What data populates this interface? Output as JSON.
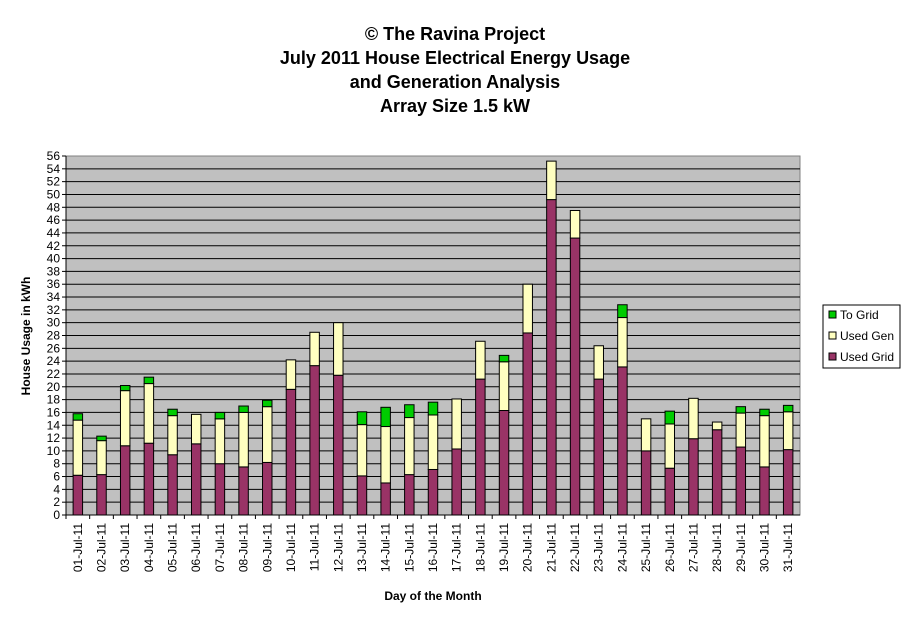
{
  "chart_data": {
    "type": "bar",
    "stacked": true,
    "title_lines": [
      "© The Ravina Project",
      "July 2011 House Electrical Energy Usage",
      "and Generation Analysis",
      "Array Size 1.5 kW"
    ],
    "xlabel": "Day of the Month",
    "ylabel": "House Usage in kWh",
    "ylim": [
      0,
      56
    ],
    "ytick_step": 2,
    "grid": true,
    "legend_position": "right",
    "categories": [
      "01-Jul-11",
      "02-Jul-11",
      "03-Jul-11",
      "04-Jul-11",
      "05-Jul-11",
      "06-Jul-11",
      "07-Jul-11",
      "08-Jul-11",
      "09-Jul-11",
      "10-Jul-11",
      "11-Jul-11",
      "12-Jul-11",
      "13-Jul-11",
      "14-Jul-11",
      "15-Jul-11",
      "16-Jul-11",
      "17-Jul-11",
      "18-Jul-11",
      "19-Jul-11",
      "20-Jul-11",
      "21-Jul-11",
      "22-Jul-11",
      "23-Jul-11",
      "24-Jul-11",
      "25-Jul-11",
      "26-Jul-11",
      "27-Jul-11",
      "28-Jul-11",
      "29-Jul-11",
      "30-Jul-11",
      "31-Jul-11"
    ],
    "series": [
      {
        "name": "Used Grid",
        "color": "#993366",
        "values": [
          6.2,
          6.3,
          10.8,
          11.2,
          9.4,
          11.1,
          8.0,
          7.5,
          8.2,
          19.6,
          23.3,
          21.8,
          6.1,
          5.0,
          6.3,
          7.1,
          10.3,
          21.2,
          16.3,
          28.4,
          49.2,
          43.2,
          21.2,
          23.1,
          10.0,
          7.3,
          11.9,
          13.3,
          10.6,
          7.5,
          10.2
        ]
      },
      {
        "name": "Used Gen",
        "color": "#FFFFC0",
        "values": [
          8.6,
          5.3,
          8.6,
          9.3,
          6.1,
          4.6,
          7.0,
          8.5,
          8.7,
          4.6,
          5.2,
          8.2,
          8.0,
          8.8,
          8.9,
          8.5,
          7.8,
          5.9,
          7.6,
          7.6,
          6.0,
          4.3,
          5.2,
          7.7,
          5.0,
          6.9,
          6.3,
          1.2,
          5.3,
          8.0,
          5.9
        ]
      },
      {
        "name": "To Grid",
        "color": "#00CC00",
        "values": [
          1.0,
          0.7,
          0.8,
          1.0,
          1.0,
          0.0,
          1.0,
          1.0,
          1.0,
          0.0,
          0.0,
          0.0,
          2.0,
          3.0,
          2.0,
          2.0,
          0.0,
          0.0,
          1.0,
          0.0,
          0.0,
          0.0,
          0.0,
          2.0,
          0.0,
          2.0,
          0.0,
          0.0,
          1.0,
          1.0,
          1.0
        ]
      }
    ],
    "legend_order": [
      "To Grid",
      "Used Gen",
      "Used Grid"
    ]
  }
}
